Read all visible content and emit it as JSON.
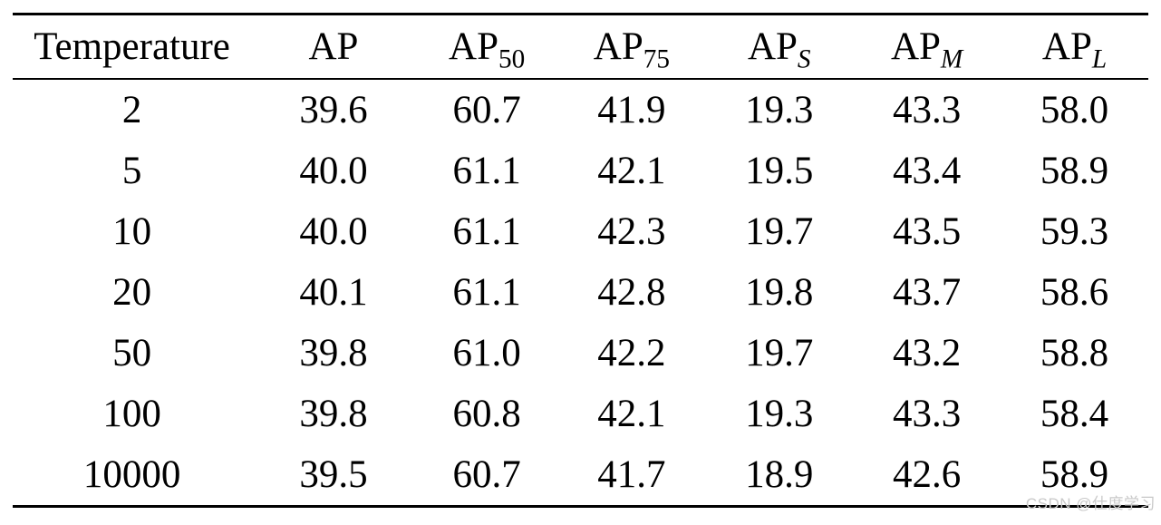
{
  "watermark": {
    "text": "CSDN @仕度学习",
    "color": "#c9c9c9"
  },
  "colors": {
    "background": "#ffffff",
    "text": "#000000",
    "rule": "#000000"
  },
  "table": {
    "columns": [
      {
        "key": "temperature",
        "base": "Temperature",
        "sub": "",
        "sub_italic": false
      },
      {
        "key": "ap",
        "base": "AP",
        "sub": "",
        "sub_italic": false
      },
      {
        "key": "ap-50",
        "base": "AP",
        "sub": "50",
        "sub_italic": false
      },
      {
        "key": "ap-75",
        "base": "AP",
        "sub": "75",
        "sub_italic": false
      },
      {
        "key": "ap-s",
        "base": "AP",
        "sub": "S",
        "sub_italic": true
      },
      {
        "key": "ap-m",
        "base": "AP",
        "sub": "M",
        "sub_italic": true
      },
      {
        "key": "ap-l",
        "base": "AP",
        "sub": "L",
        "sub_italic": true
      }
    ],
    "rows": [
      [
        "2",
        "39.6",
        "60.7",
        "41.9",
        "19.3",
        "43.3",
        "58.0"
      ],
      [
        "5",
        "40.0",
        "61.1",
        "42.1",
        "19.5",
        "43.4",
        "58.9"
      ],
      [
        "10",
        "40.0",
        "61.1",
        "42.3",
        "19.7",
        "43.5",
        "59.3"
      ],
      [
        "20",
        "40.1",
        "61.1",
        "42.8",
        "19.8",
        "43.7",
        "58.6"
      ],
      [
        "50",
        "39.8",
        "61.0",
        "42.2",
        "19.7",
        "43.2",
        "58.8"
      ],
      [
        "100",
        "39.8",
        "60.8",
        "42.1",
        "19.3",
        "43.3",
        "58.4"
      ],
      [
        "10000",
        "39.5",
        "60.7",
        "41.7",
        "18.9",
        "42.6",
        "58.9"
      ]
    ]
  }
}
